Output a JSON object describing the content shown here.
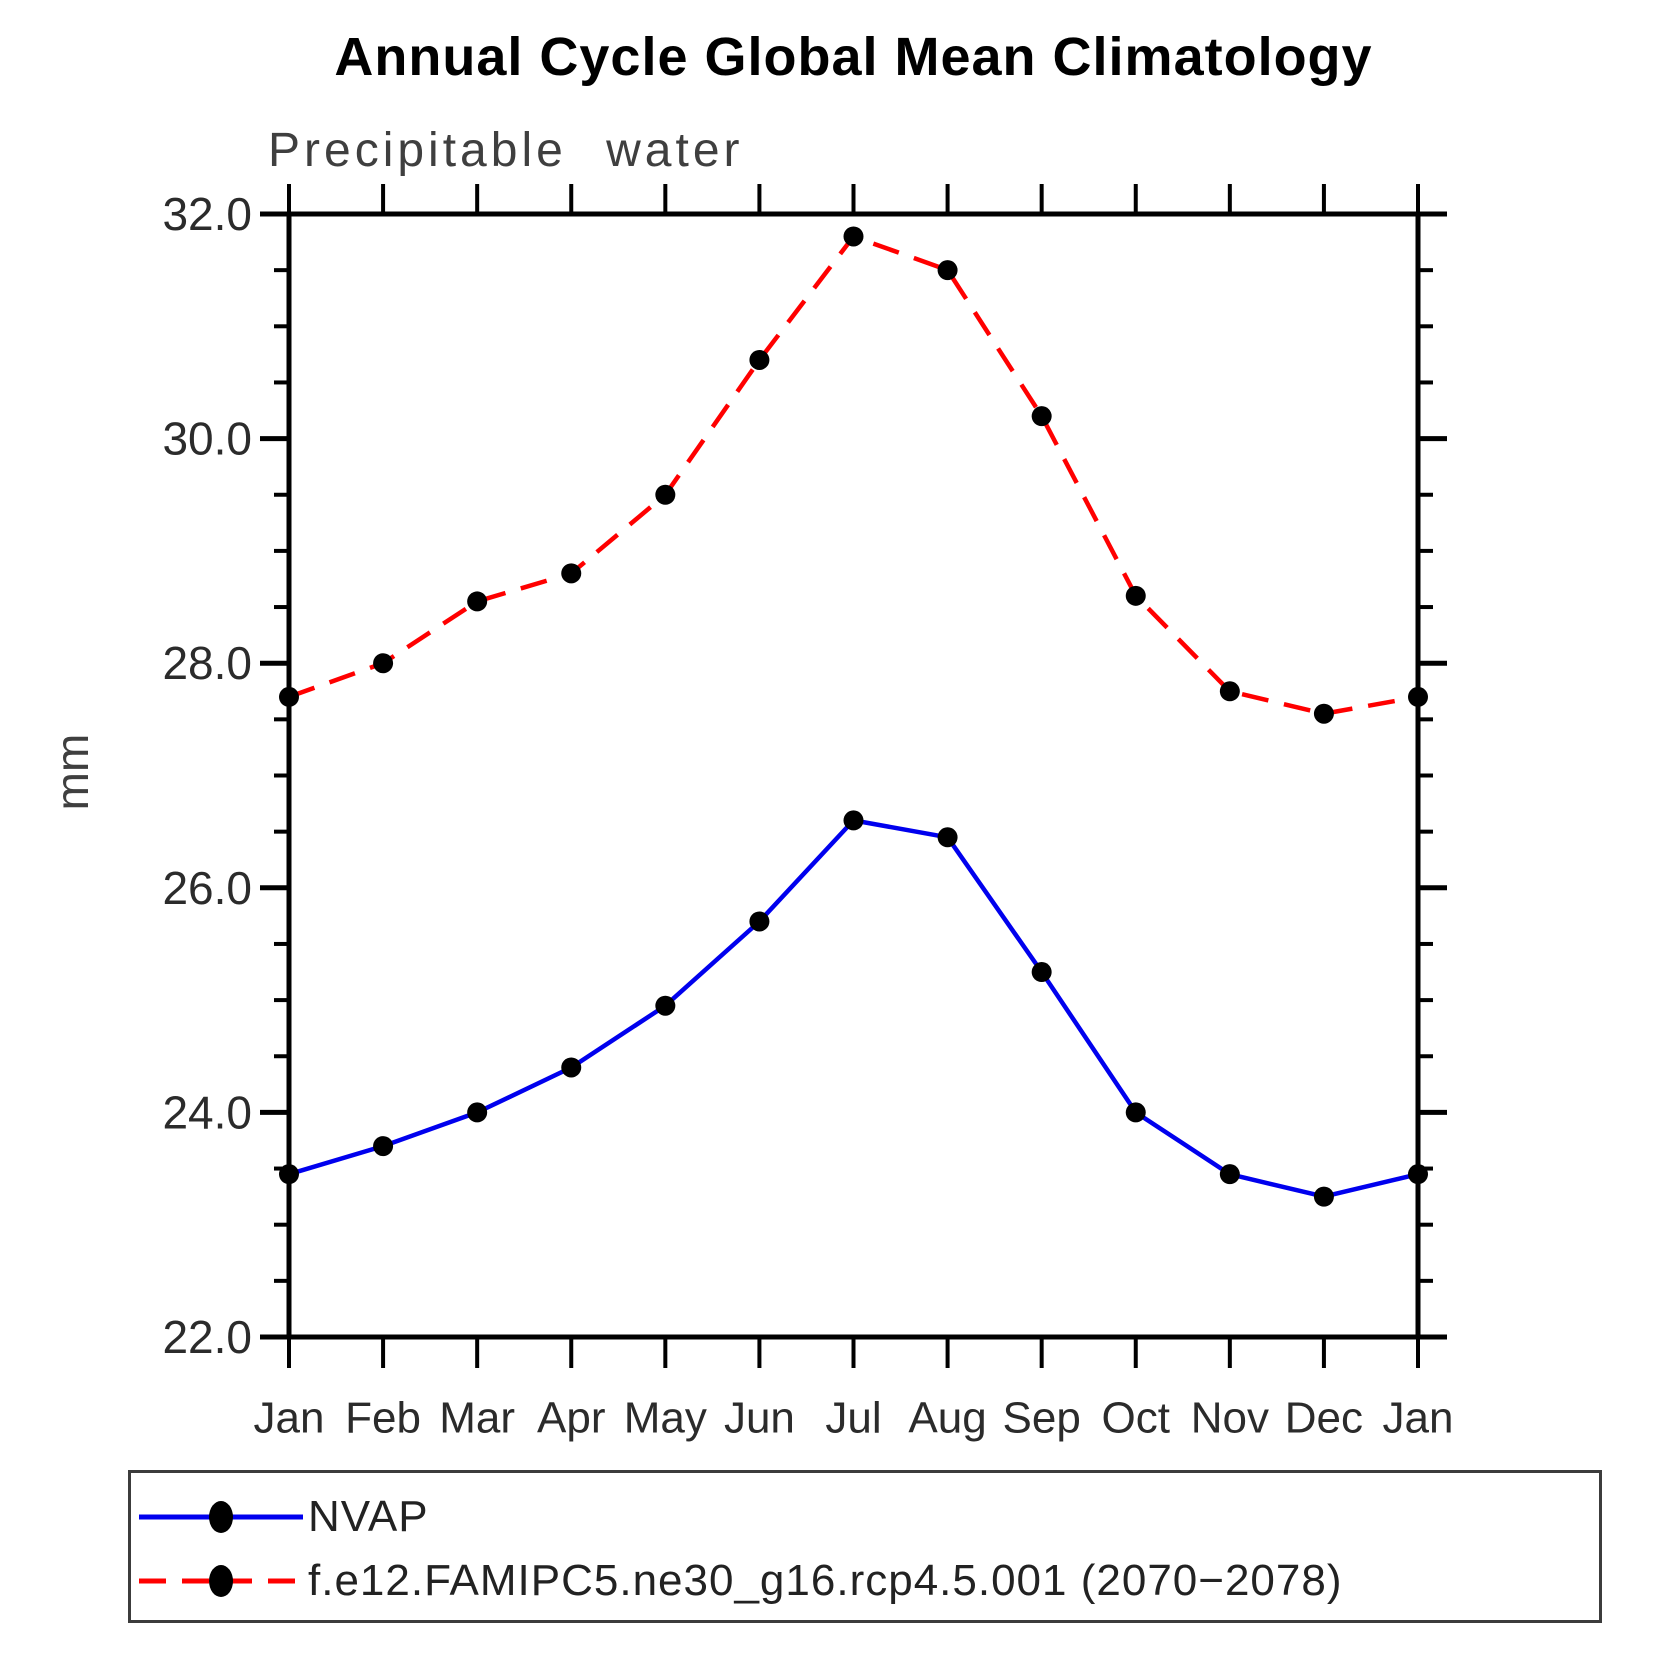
{
  "title": "Annual Cycle Global Mean Climatology",
  "chart_data": {
    "type": "line",
    "title": "Annual Cycle Global Mean Climatology",
    "subtitle": "Precipitable water",
    "ylabel": "mm",
    "xlabel": "",
    "x_categories": [
      "Jan",
      "Feb",
      "Mar",
      "Apr",
      "May",
      "Jun",
      "Jul",
      "Aug",
      "Sep",
      "Oct",
      "Nov",
      "Dec",
      "Jan"
    ],
    "ylim": [
      22.0,
      32.0
    ],
    "y_major_step": 2.0,
    "y_minor_step": 0.5,
    "y_tick_labels": [
      "32.0",
      "30.0",
      "28.0",
      "26.0",
      "24.0",
      "22.0"
    ],
    "grid": "off",
    "legend_position": "bottom-left-box",
    "series": [
      {
        "name": "NVAP",
        "line_style": "solid",
        "color": "#0000ee",
        "marker_color": "#000000",
        "values": [
          23.45,
          23.7,
          24.0,
          24.4,
          24.95,
          25.7,
          26.6,
          26.45,
          25.25,
          24.0,
          23.45,
          23.25,
          23.45
        ]
      },
      {
        "name": "f.e12.FAMIPC5.ne30_g16.rcp4.5.001 (2070−2078)",
        "line_style": "dashed",
        "color": "#ff0000",
        "marker_color": "#000000",
        "values": [
          27.7,
          28.0,
          28.55,
          28.8,
          29.5,
          30.7,
          31.8,
          31.5,
          30.2,
          28.6,
          27.75,
          27.55,
          27.7
        ]
      }
    ]
  }
}
